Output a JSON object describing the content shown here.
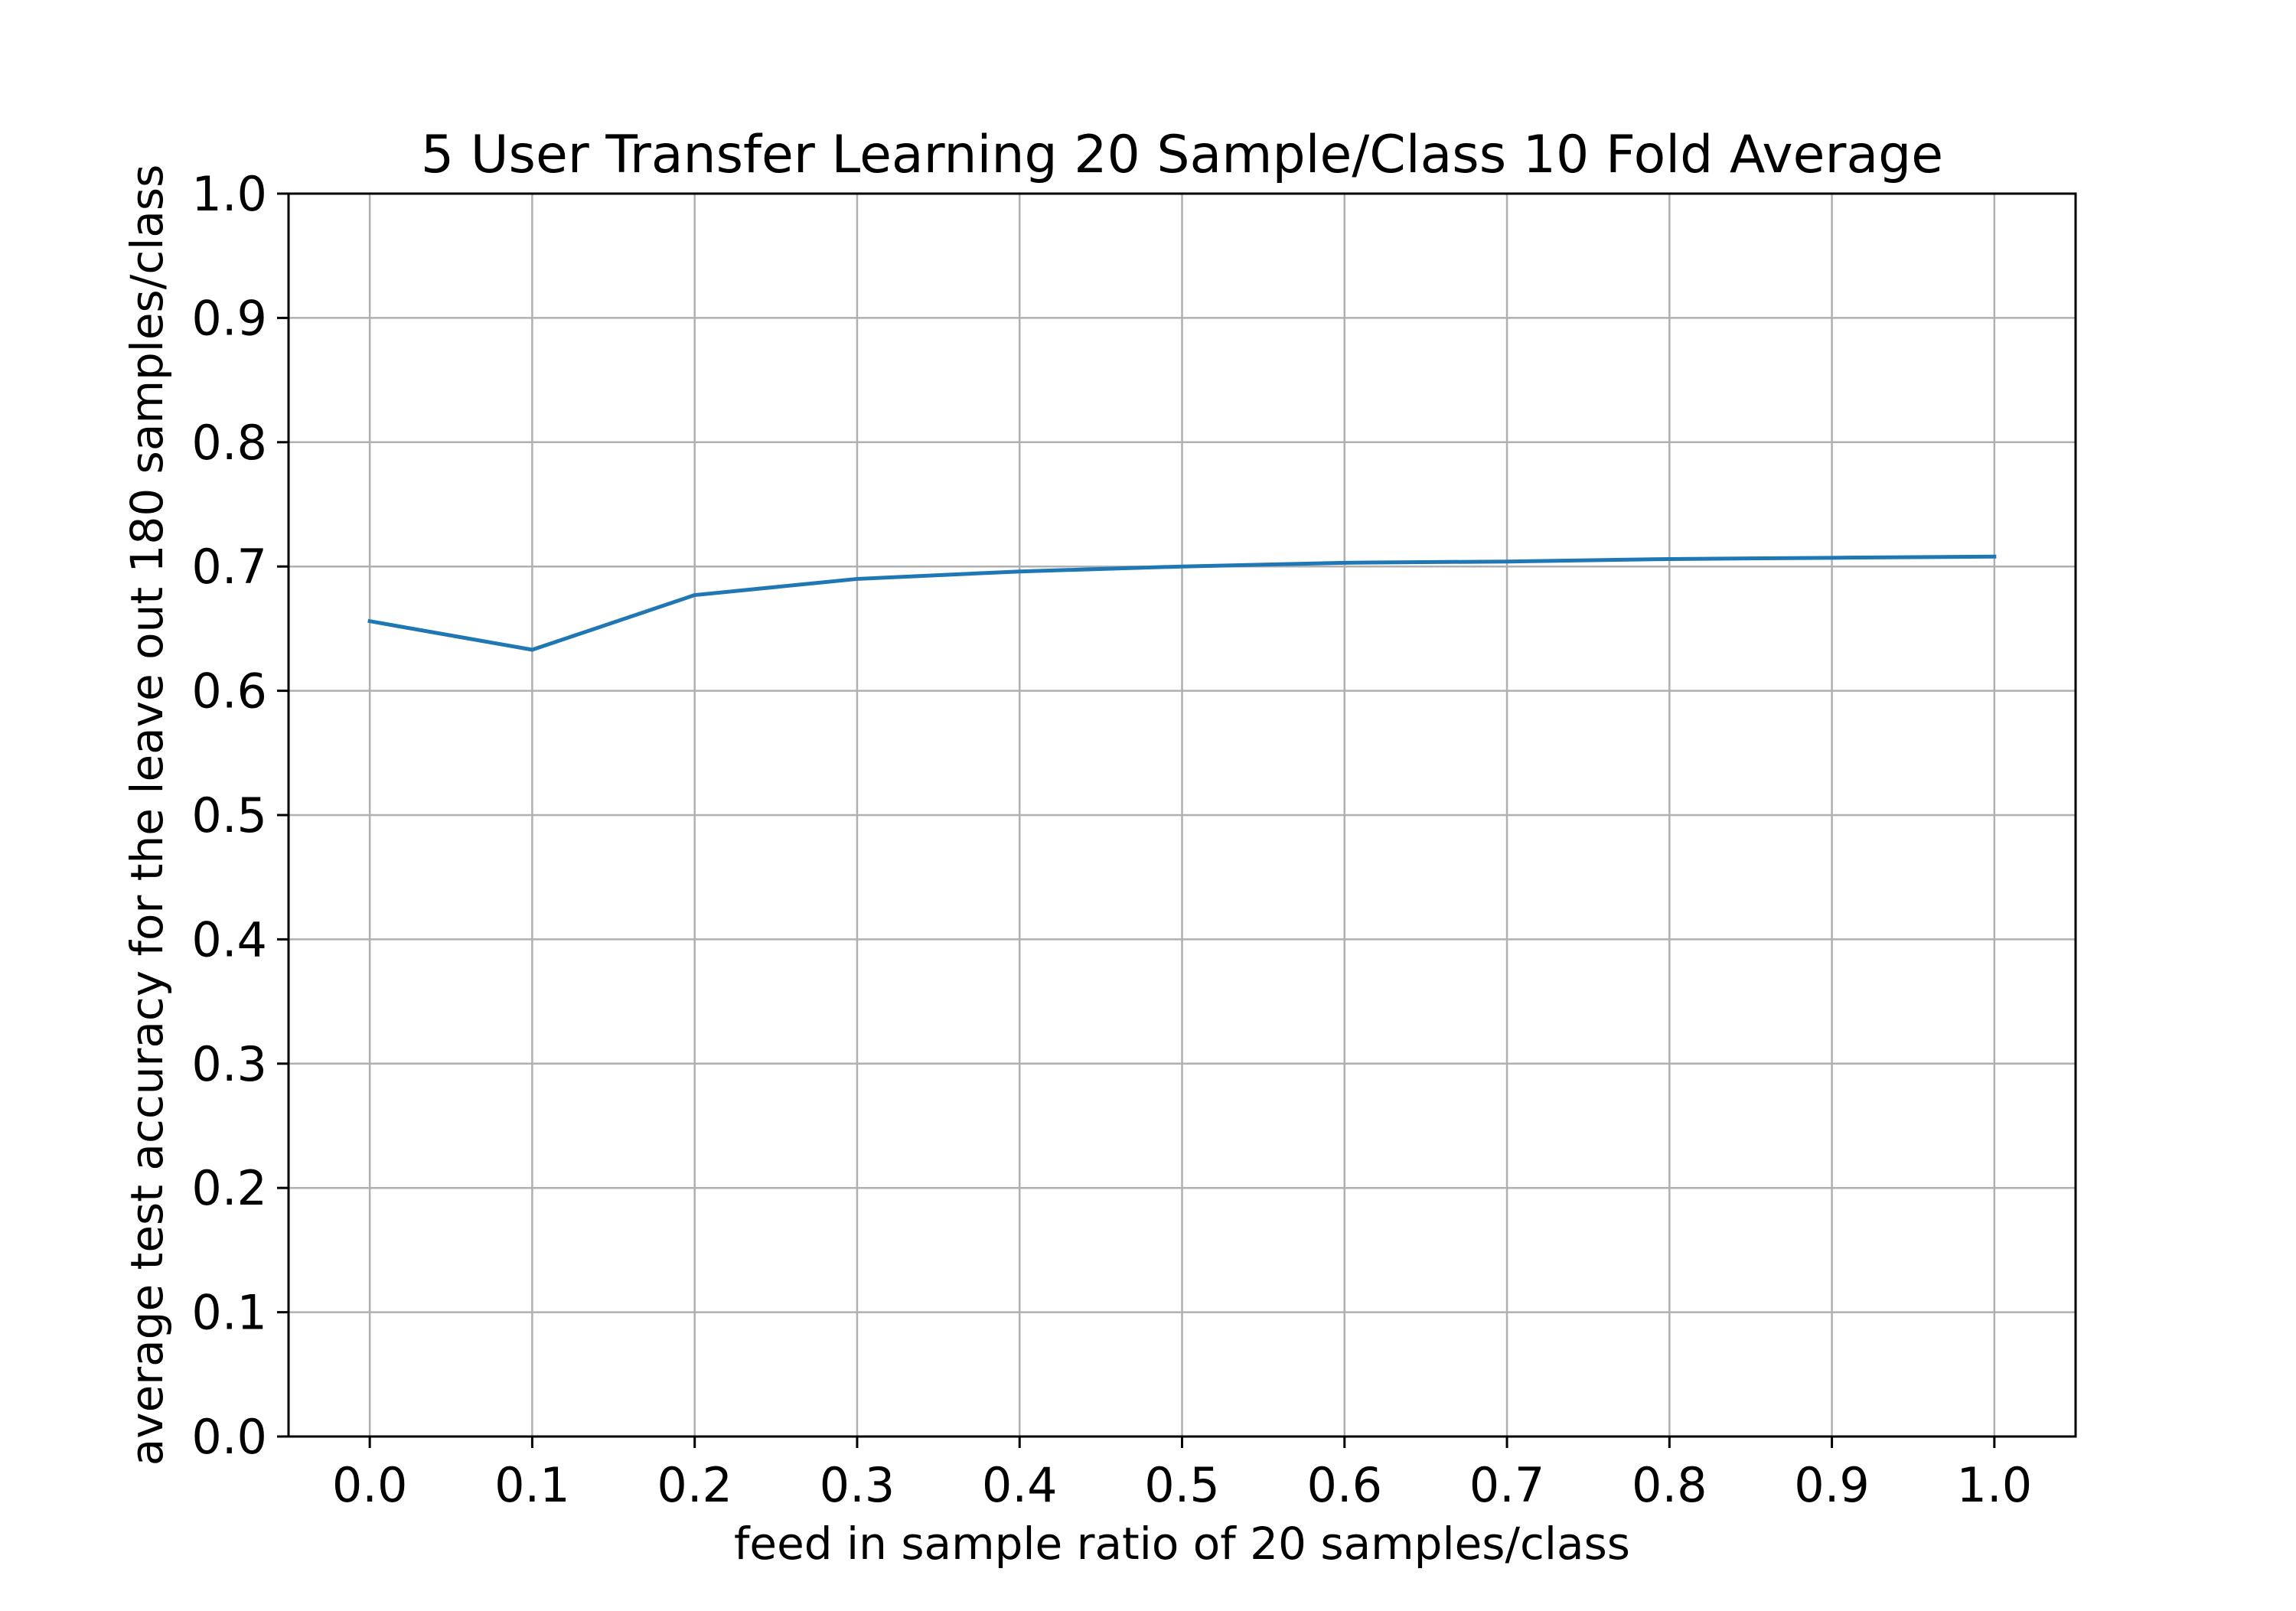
{
  "chart_data": {
    "type": "line",
    "title": "5 User Transfer Learning 20 Sample/Class 10 Fold Average",
    "xlabel": "feed in sample ratio of 20 samples/class",
    "ylabel": "average test accuracy for the leave out 180 samples/class",
    "xlim": [
      -0.05,
      1.05
    ],
    "ylim": [
      0.0,
      1.0
    ],
    "x_ticks": [
      "0.0",
      "0.1",
      "0.2",
      "0.3",
      "0.4",
      "0.5",
      "0.6",
      "0.7",
      "0.8",
      "0.9",
      "1.0"
    ],
    "y_ticks": [
      "0.0",
      "0.1",
      "0.2",
      "0.3",
      "0.4",
      "0.5",
      "0.6",
      "0.7",
      "0.8",
      "0.9",
      "1.0"
    ],
    "grid": true,
    "legend": "none",
    "series": [
      {
        "color": "#1f77b4",
        "x": [
          0.0,
          0.1,
          0.2,
          0.3,
          0.4,
          0.5,
          0.6,
          0.7,
          0.8,
          0.9,
          1.0
        ],
        "y": [
          0.656,
          0.633,
          0.677,
          0.69,
          0.696,
          0.7,
          0.703,
          0.704,
          0.706,
          0.707,
          0.708
        ]
      }
    ]
  }
}
